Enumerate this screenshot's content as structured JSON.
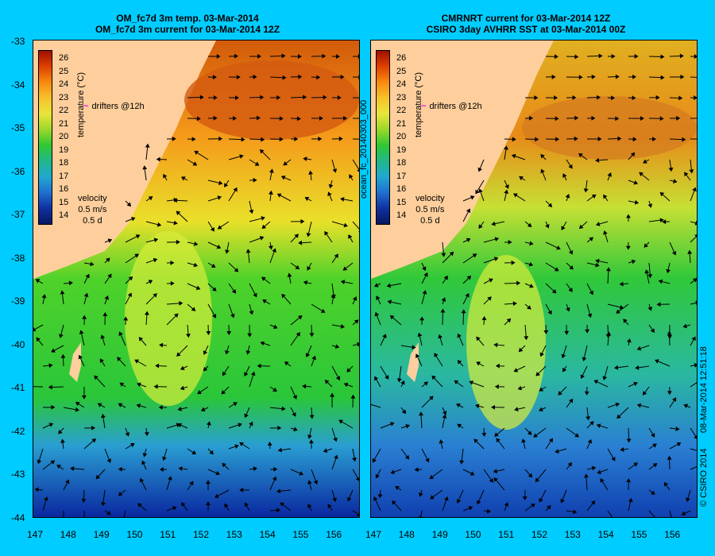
{
  "left_panel": {
    "title_line1": "OM_fc7d 3m temp. 03-Mar-2014",
    "title_line2": "OM_fc7d 3m current for 03-Mar-2014 12Z"
  },
  "right_panel": {
    "title_line1": "CMRNRT current for 03-Mar-2014 12Z",
    "title_line2": "CSIRO 3day AVHRR SST at 03-Mar-2014 00Z"
  },
  "legend": {
    "colorbar_title": "temperature (°C)",
    "colorbar_ticks": [
      "26",
      "25",
      "24",
      "23",
      "22",
      "21",
      "20",
      "19",
      "18",
      "17",
      "16",
      "15",
      "14"
    ],
    "drifters_label": "drifters @12h",
    "velocity_label": "velocity",
    "velocity_scale": "0.5 m/s",
    "velocity_time": "0.5 d"
  },
  "axes": {
    "lat_ticks": [
      "-33",
      "-34",
      "-35",
      "-36",
      "-37",
      "-38",
      "-39",
      "-40",
      "-41",
      "-42",
      "-43",
      "-44"
    ],
    "lon_ticks": [
      "147",
      "148",
      "149",
      "150",
      "151",
      "152",
      "153",
      "154",
      "155",
      "156"
    ]
  },
  "side_labels": {
    "middle": "ocean_fc_20140303_000",
    "right_timestamp": "08-Mar-2014 12:51:18",
    "right_copyright": "© CSIRO 2014"
  },
  "colors": {
    "background": "#00ccff",
    "land": "#fecf9c",
    "drifter": "#ff00ff"
  }
}
